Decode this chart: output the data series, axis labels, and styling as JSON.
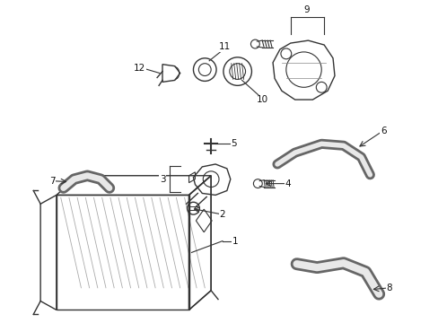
{
  "bg_color": "#ffffff",
  "fig_width": 4.89,
  "fig_height": 3.6,
  "dpi": 100,
  "line_color": "#333333",
  "label_fontsize": 7.5
}
